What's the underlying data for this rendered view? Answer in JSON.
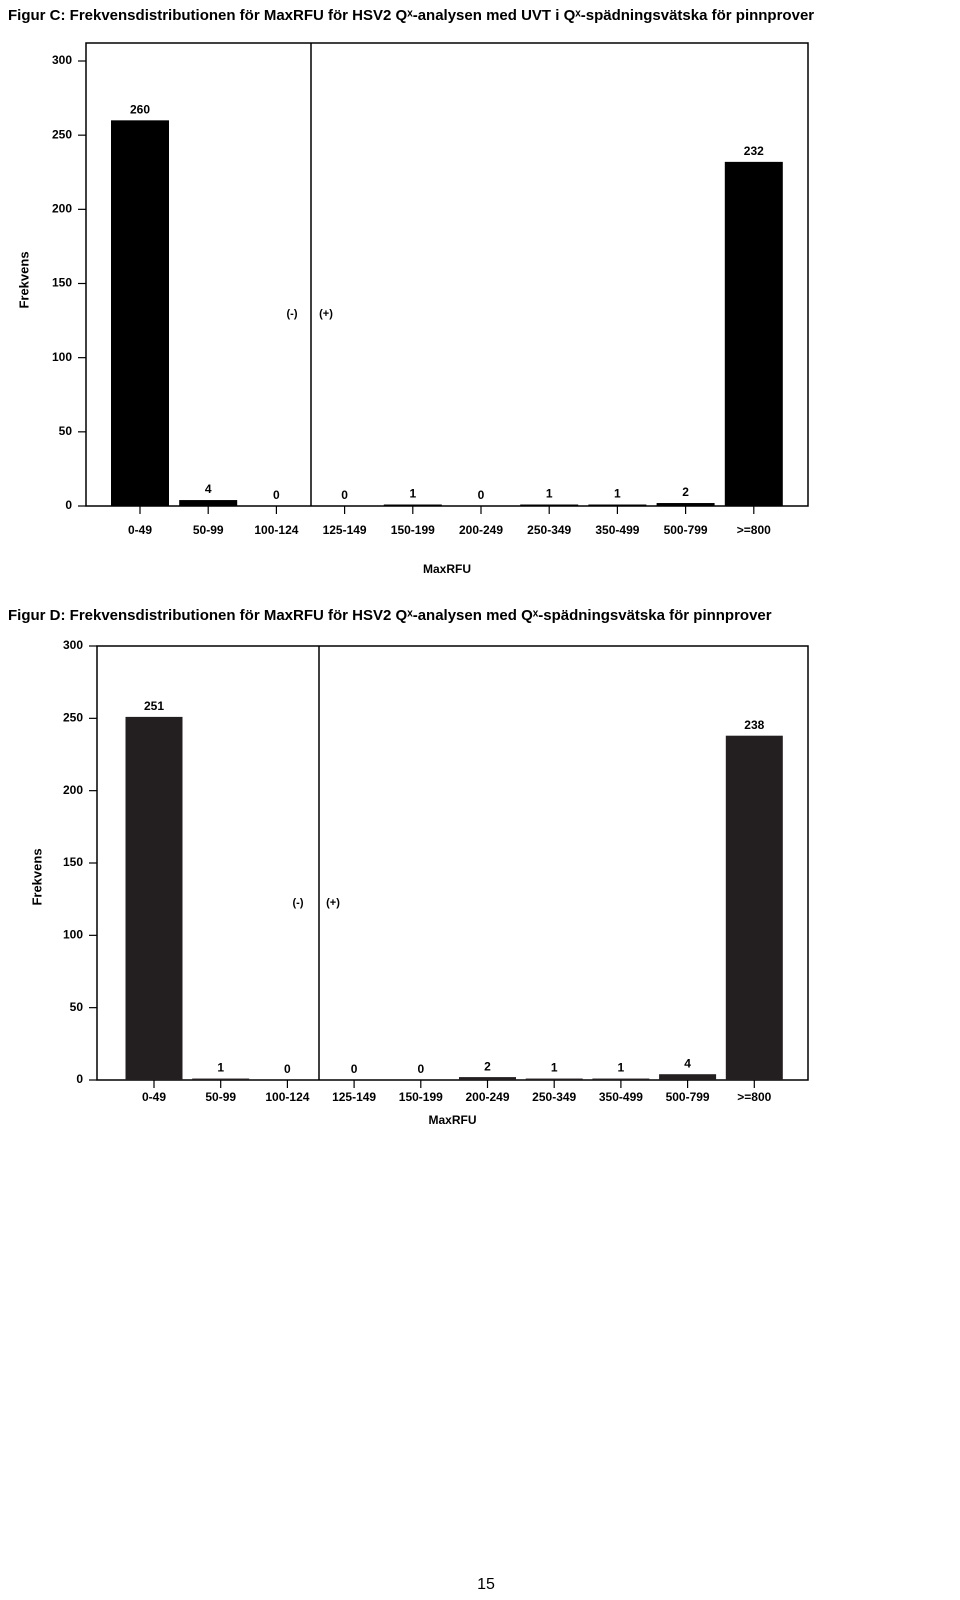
{
  "chart_data": [
    {
      "type": "bar",
      "title": "Figur C: Frekvensdistributionen för MaxRFU för HSV2 Qˣ-analysen med UVT i Qˣ-spädningsvätska för pinnprover",
      "x_label": "MaxRFU",
      "y_label": "Frekvens",
      "categories": [
        "0-49",
        "50-99",
        "100-124",
        "125-149",
        "150-199",
        "200-249",
        "250-349",
        "350-499",
        "500-799",
        ">=800"
      ],
      "values": [
        260,
        4,
        0,
        0,
        1,
        0,
        1,
        1,
        2,
        232
      ],
      "color": "#000000",
      "ylim": [
        0,
        300
      ],
      "yticks": [
        0,
        50,
        100,
        150,
        200,
        250,
        300
      ],
      "annotations": [
        "(-)",
        "(+)"
      ]
    },
    {
      "type": "bar",
      "title": "Figur D: Frekvensdistributionen för MaxRFU för HSV2 Qˣ-analysen med Qˣ-spädningsvätska för pinnprover",
      "x_label": "MaxRFU",
      "y_label": "Frekvens",
      "categories": [
        "0-49",
        "50-99",
        "100-124",
        "125-149",
        "150-199",
        "200-249",
        "250-349",
        "350-499",
        "500-799",
        ">=800"
      ],
      "values": [
        251,
        1,
        0,
        0,
        0,
        2,
        1,
        1,
        4,
        238
      ],
      "color": "#231f20",
      "ylim": [
        0,
        300
      ],
      "yticks": [
        0,
        50,
        100,
        150,
        200,
        250,
        300
      ],
      "annotations": [
        "(-)",
        "(+)"
      ]
    }
  ],
  "page_number": "15"
}
